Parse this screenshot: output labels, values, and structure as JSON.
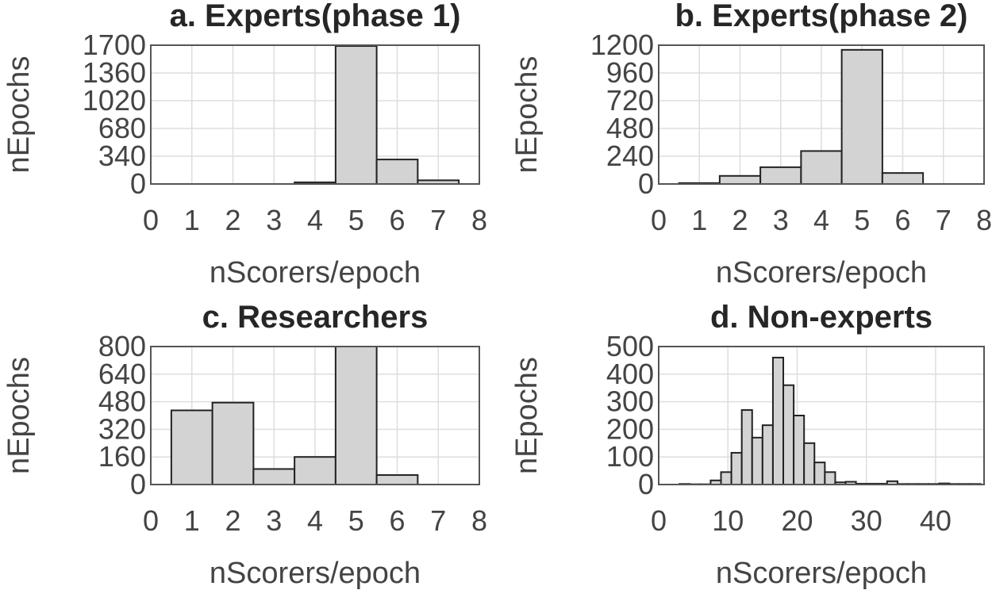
{
  "chart_data": [
    {
      "type": "bar",
      "title": "a. Experts(phase 1)",
      "xlabel": "nScorers/epoch",
      "ylabel": "nEpochs",
      "xlim": [
        0,
        8
      ],
      "ylim": [
        0,
        1700
      ],
      "xticks": [
        0,
        1,
        2,
        3,
        4,
        5,
        6,
        7,
        8
      ],
      "yticks": [
        0,
        340,
        680,
        1020,
        1360,
        1700
      ],
      "grid": true,
      "bins": [
        {
          "from": 3.5,
          "to": 4.5,
          "value": 20
        },
        {
          "from": 4.5,
          "to": 5.5,
          "value": 1690
        },
        {
          "from": 5.5,
          "to": 6.5,
          "value": 300
        },
        {
          "from": 6.5,
          "to": 7.5,
          "value": 45
        }
      ]
    },
    {
      "type": "bar",
      "title": "b. Experts(phase 2)",
      "xlabel": "nScorers/epoch",
      "ylabel": "nEpochs",
      "xlim": [
        0,
        8
      ],
      "ylim": [
        0,
        1200
      ],
      "xticks": [
        0,
        1,
        2,
        3,
        4,
        5,
        6,
        7,
        8
      ],
      "yticks": [
        0,
        240,
        480,
        720,
        960,
        1200
      ],
      "grid": true,
      "bins": [
        {
          "from": 0.5,
          "to": 1.5,
          "value": 8
        },
        {
          "from": 1.5,
          "to": 2.5,
          "value": 70
        },
        {
          "from": 2.5,
          "to": 3.5,
          "value": 145
        },
        {
          "from": 3.5,
          "to": 4.5,
          "value": 285
        },
        {
          "from": 4.5,
          "to": 5.5,
          "value": 1160
        },
        {
          "from": 5.5,
          "to": 6.5,
          "value": 95
        }
      ]
    },
    {
      "type": "bar",
      "title": "c. Researchers",
      "xlabel": "nScorers/epoch",
      "ylabel": "nEpochs",
      "xlim": [
        0,
        8
      ],
      "ylim": [
        0,
        800
      ],
      "xticks": [
        0,
        1,
        2,
        3,
        4,
        5,
        6,
        7,
        8
      ],
      "yticks": [
        0,
        160,
        320,
        480,
        640,
        800
      ],
      "grid": true,
      "bins": [
        {
          "from": 0.5,
          "to": 1.5,
          "value": 430
        },
        {
          "from": 1.5,
          "to": 2.5,
          "value": 475
        },
        {
          "from": 2.5,
          "to": 3.5,
          "value": 90
        },
        {
          "from": 3.5,
          "to": 4.5,
          "value": 160
        },
        {
          "from": 4.5,
          "to": 5.5,
          "value": 800
        },
        {
          "from": 5.5,
          "to": 6.5,
          "value": 55
        }
      ]
    },
    {
      "type": "bar",
      "title": "d. Non-experts",
      "xlabel": "nScorers/epoch",
      "ylabel": "nEpochs",
      "xlim": [
        0,
        47
      ],
      "ylim": [
        0,
        500
      ],
      "xticks": [
        0,
        10,
        20,
        30,
        40
      ],
      "yticks": [
        0,
        100,
        200,
        300,
        400,
        500
      ],
      "grid": true,
      "bins": [
        {
          "from": 3,
          "to": 4.5,
          "value": 2
        },
        {
          "from": 4.5,
          "to": 6,
          "value": 1
        },
        {
          "from": 6,
          "to": 7.5,
          "value": 1
        },
        {
          "from": 7.5,
          "to": 9,
          "value": 15
        },
        {
          "from": 9,
          "to": 10.5,
          "value": 45
        },
        {
          "from": 10.5,
          "to": 12,
          "value": 115
        },
        {
          "from": 12,
          "to": 13.5,
          "value": 270
        },
        {
          "from": 13.5,
          "to": 15,
          "value": 170
        },
        {
          "from": 15,
          "to": 16.5,
          "value": 215
        },
        {
          "from": 16.5,
          "to": 18,
          "value": 460
        },
        {
          "from": 18,
          "to": 19.5,
          "value": 360
        },
        {
          "from": 19.5,
          "to": 21,
          "value": 250
        },
        {
          "from": 21,
          "to": 22.5,
          "value": 150
        },
        {
          "from": 22.5,
          "to": 24,
          "value": 80
        },
        {
          "from": 24,
          "to": 25.5,
          "value": 45
        },
        {
          "from": 25.5,
          "to": 27,
          "value": 8
        },
        {
          "from": 27,
          "to": 28.5,
          "value": 10
        },
        {
          "from": 28.5,
          "to": 30,
          "value": 3
        },
        {
          "from": 30,
          "to": 31.5,
          "value": 3
        },
        {
          "from": 31.5,
          "to": 33,
          "value": 3
        },
        {
          "from": 33,
          "to": 34.5,
          "value": 12
        },
        {
          "from": 34.5,
          "to": 36,
          "value": 2
        },
        {
          "from": 36,
          "to": 37.5,
          "value": 2
        },
        {
          "from": 37.5,
          "to": 39,
          "value": 2
        },
        {
          "from": 39,
          "to": 40.5,
          "value": 2
        },
        {
          "from": 40.5,
          "to": 42,
          "value": 4
        },
        {
          "from": 42,
          "to": 43.5,
          "value": 2
        },
        {
          "from": 43.5,
          "to": 45,
          "value": 2
        },
        {
          "from": 45,
          "to": 46.5,
          "value": 2
        }
      ]
    }
  ]
}
